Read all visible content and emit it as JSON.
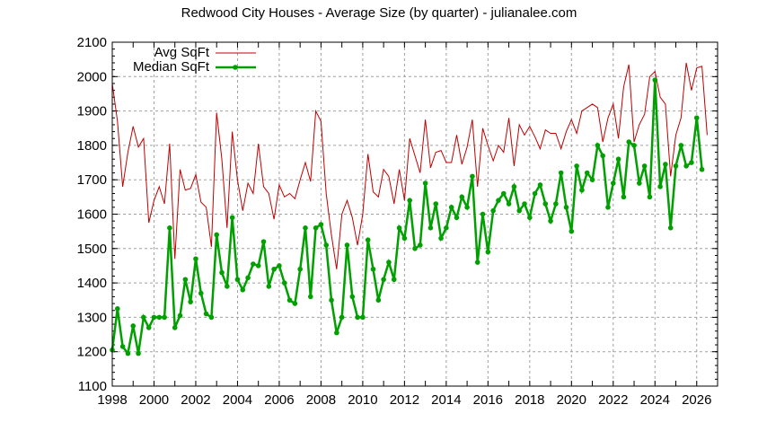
{
  "chart_data": {
    "type": "line",
    "title": "Redwood City Houses - Average Size (by quarter) - julianalee.com",
    "xlabel": "",
    "ylabel": "",
    "xlim": [
      1998,
      2027
    ],
    "ylim": [
      1100,
      2100
    ],
    "grid": true,
    "legend_position": "top-left",
    "x_ticks": [
      "1998",
      "2000",
      "2002",
      "2004",
      "2006",
      "2008",
      "2010",
      "2012",
      "2014",
      "2016",
      "2018",
      "2020",
      "2022",
      "2024",
      "2026"
    ],
    "y_ticks": [
      "1100",
      "1200",
      "1300",
      "1400",
      "1500",
      "1600",
      "1700",
      "1800",
      "1900",
      "2000",
      "2100"
    ],
    "x_start": 1998.0,
    "x_step": 0.25,
    "series": [
      {
        "name": "Avg SqFt",
        "color": "#c00000",
        "marker": false,
        "values": [
          1980,
          1870,
          1680,
          1780,
          1855,
          1795,
          1820,
          1575,
          1640,
          1680,
          1630,
          1805,
          1470,
          1730,
          1670,
          1675,
          1715,
          1635,
          1620,
          1505,
          1895,
          1760,
          1560,
          1840,
          1700,
          1610,
          1690,
          1660,
          1805,
          1680,
          1660,
          1585,
          1685,
          1650,
          1660,
          1645,
          1700,
          1750,
          1695,
          1900,
          1870,
          1660,
          1540,
          1440,
          1600,
          1640,
          1590,
          1510,
          1600,
          1775,
          1665,
          1650,
          1730,
          1710,
          1630,
          1730,
          1640,
          1820,
          1770,
          1720,
          1875,
          1735,
          1780,
          1785,
          1750,
          1750,
          1830,
          1745,
          1795,
          1875,
          1680,
          1850,
          1800,
          1755,
          1800,
          1780,
          1880,
          1740,
          1860,
          1830,
          1855,
          1825,
          1790,
          1845,
          1835,
          1835,
          1790,
          1840,
          1875,
          1835,
          1900,
          1910,
          1920,
          1910,
          1810,
          1880,
          1920,
          1820,
          1970,
          2035,
          1810,
          1860,
          1890,
          2000,
          2015,
          1940,
          1920,
          1710,
          1830,
          1880,
          2040,
          1960,
          2025,
          2030,
          1830
        ]
      },
      {
        "name": "Median SqFt",
        "color": "#00a000",
        "marker": true,
        "values": [
          1205,
          1325,
          1215,
          1195,
          1275,
          1195,
          1300,
          1270,
          1300,
          1300,
          1300,
          1560,
          1270,
          1305,
          1410,
          1345,
          1470,
          1370,
          1310,
          1300,
          1540,
          1430,
          1390,
          1590,
          1410,
          1380,
          1415,
          1455,
          1450,
          1520,
          1390,
          1440,
          1450,
          1400,
          1350,
          1340,
          1440,
          1560,
          1360,
          1560,
          1570,
          1510,
          1350,
          1255,
          1300,
          1510,
          1360,
          1300,
          1300,
          1525,
          1440,
          1350,
          1410,
          1460,
          1410,
          1560,
          1530,
          1640,
          1500,
          1510,
          1690,
          1560,
          1630,
          1530,
          1560,
          1620,
          1590,
          1650,
          1620,
          1710,
          1460,
          1600,
          1490,
          1610,
          1640,
          1660,
          1630,
          1680,
          1610,
          1630,
          1590,
          1660,
          1685,
          1630,
          1580,
          1630,
          1720,
          1620,
          1550,
          1740,
          1670,
          1720,
          1700,
          1800,
          1770,
          1620,
          1690,
          1760,
          1650,
          1810,
          1800,
          1690,
          1740,
          1650,
          1990,
          1680,
          1745,
          1560,
          1740,
          1800,
          1740,
          1750,
          1880,
          1730
        ]
      }
    ]
  },
  "legend": {
    "items": [
      "Avg SqFt",
      "Median SqFt"
    ]
  }
}
